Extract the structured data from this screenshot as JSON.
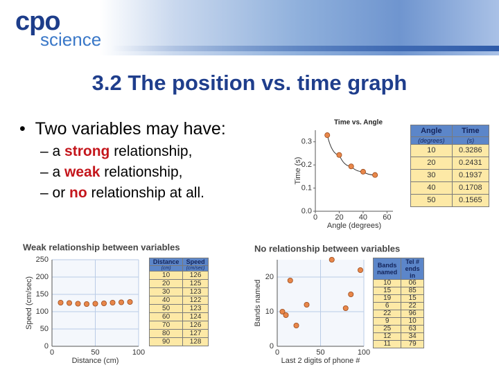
{
  "slide": {
    "logo": {
      "top": "cpo",
      "bottom": "science"
    },
    "title": "3.2 The position vs. time graph",
    "bullets": {
      "text": "Two variables may have:",
      "items": [
        {
          "before": "– a ",
          "emph": "strong",
          "after": " relationship,"
        },
        {
          "before": "– a ",
          "emph": "weak",
          "after": " relationship,"
        },
        {
          "before": "– or ",
          "emph": "no",
          "after": " relationship at all."
        }
      ]
    }
  },
  "chart_data": [
    {
      "type": "scatter",
      "title": "Time vs. Angle",
      "x_label": "Angle (degrees)",
      "y_label": "Time (s)",
      "x": [
        10,
        20,
        30,
        40,
        50
      ],
      "values": [
        0.3286,
        0.2431,
        0.1937,
        0.1708,
        0.1565
      ],
      "color": "#e8874a",
      "trend_line": true,
      "xlim": [
        0,
        65
      ],
      "ylim": [
        0,
        0.35
      ],
      "xticks": [
        0,
        20,
        40,
        60
      ],
      "yticks": [
        {
          "value": 0,
          "label": "0.0"
        },
        0.1,
        0.2,
        0.3
      ],
      "grid": false
    },
    {
      "type": "scatter",
      "title": "Weak relationship between variables",
      "x_label": "Distance (cm)",
      "y_label": "Speed (cm/sec)",
      "x": [
        10,
        20,
        30,
        40,
        50,
        60,
        70,
        80,
        90
      ],
      "values": [
        126,
        125,
        123,
        122,
        123,
        124,
        126,
        127,
        128
      ],
      "color": "#e8874a",
      "trend_line": false,
      "xlim": [
        0,
        100
      ],
      "ylim": [
        0,
        250
      ],
      "xticks": [
        0,
        50,
        100
      ],
      "yticks": [
        0,
        50,
        100,
        150,
        200,
        250
      ],
      "grid": true
    },
    {
      "type": "scatter",
      "title": "No relationship between variables",
      "x_label": "Last 2 digits of phone #",
      "y_label": "Bands named",
      "x": [
        6,
        85,
        15,
        22,
        96,
        10,
        63,
        34,
        79
      ],
      "values": [
        10,
        15,
        19,
        6,
        22,
        9,
        25,
        12,
        11
      ],
      "color": "#e8874a",
      "trend_line": false,
      "xlim": [
        0,
        100
      ],
      "ylim": [
        0,
        25
      ],
      "xticks": [
        0,
        50,
        100
      ],
      "yticks": [
        0,
        10,
        20
      ],
      "grid": true
    }
  ],
  "tables": [
    {
      "header": [
        "Angle",
        "Time"
      ],
      "units": [
        "(degrees)",
        "(s)"
      ],
      "rows": [
        [
          "10",
          "0.3286"
        ],
        [
          "20",
          "0.2431"
        ],
        [
          "30",
          "0.1937"
        ],
        [
          "40",
          "0.1708"
        ],
        [
          "50",
          "0.1565"
        ]
      ]
    },
    {
      "header": [
        "Distance",
        "Speed"
      ],
      "units": [
        "(cm)",
        "(cm/sec)"
      ],
      "rows": [
        [
          "10",
          "126"
        ],
        [
          "20",
          "125"
        ],
        [
          "30",
          "123"
        ],
        [
          "40",
          "122"
        ],
        [
          "50",
          "123"
        ],
        [
          "60",
          "124"
        ],
        [
          "70",
          "126"
        ],
        [
          "80",
          "127"
        ],
        [
          "90",
          "128"
        ]
      ]
    },
    {
      "header": [
        "Bands named",
        "Tel # ends in"
      ],
      "units": [],
      "rows": [
        [
          "10",
          "06"
        ],
        [
          "15",
          "85"
        ],
        [
          "19",
          "15"
        ],
        [
          "6",
          "22"
        ],
        [
          "22",
          "96"
        ],
        [
          "9",
          "10"
        ],
        [
          "25",
          "63"
        ],
        [
          "12",
          "34"
        ],
        [
          "11",
          "79"
        ]
      ]
    }
  ]
}
